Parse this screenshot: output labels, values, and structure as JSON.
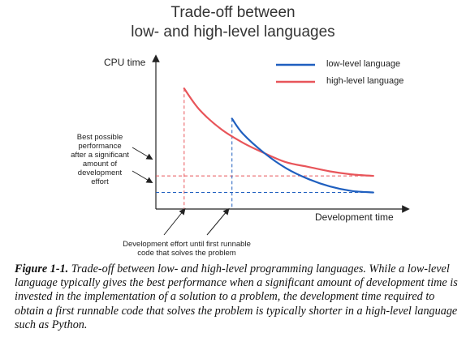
{
  "chart_data": {
    "type": "line",
    "title_line1": "Trade-off between",
    "title_line2": "low- and high-level languages",
    "ylabel": "CPU time",
    "xlabel": "Development time",
    "series": [
      {
        "name": "low-level language",
        "color": "#1f5fbf",
        "x": [
          0.35,
          0.4,
          0.5,
          0.6,
          0.7,
          0.8,
          0.9,
          1.0
        ],
        "y": [
          0.6,
          0.5,
          0.37,
          0.27,
          0.2,
          0.15,
          0.12,
          0.11
        ]
      },
      {
        "name": "high-level language",
        "color": "#e8555a",
        "x": [
          0.13,
          0.2,
          0.3,
          0.4,
          0.5,
          0.6,
          0.7,
          0.8,
          0.9,
          1.0
        ],
        "y": [
          0.8,
          0.66,
          0.53,
          0.44,
          0.37,
          0.31,
          0.28,
          0.25,
          0.23,
          0.22
        ]
      }
    ],
    "reference_lines": [
      {
        "x_start": 0.13,
        "y_level": 0.22,
        "color": "#e8555a"
      },
      {
        "x_start": 0.35,
        "y_level": 0.11,
        "color": "#1f5fbf"
      }
    ],
    "annotations": {
      "performance": [
        "Best possible",
        "performance",
        "after a significant",
        "amount of",
        "development",
        "effort"
      ],
      "effort": [
        "Development effort until first runnable",
        "code that solves the problem"
      ]
    },
    "xlim": [
      0,
      1.15
    ],
    "ylim": [
      0,
      1.0
    ]
  },
  "caption": {
    "figure_label": "Figure 1-1.",
    "text": "Trade-off between low- and high-level programming languages. While a low-level language typically gives the best performance when a significant amount of development time is invested in the implementation of a solution to a problem, the development time required to obtain a first runnable code that solves the problem is typically shorter in a high-level language such as Python."
  }
}
